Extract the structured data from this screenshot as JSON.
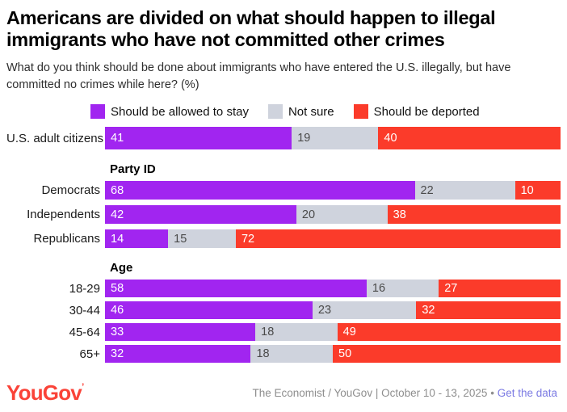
{
  "title": "Americans are divided on what should happen to illegal immigrants who have not committed other crimes",
  "subtitle": "What do you think should be done about immigrants who have entered the U.S. illegally, but have committed no crimes while here? (%)",
  "legend": [
    {
      "key": "stay",
      "label": "Should be allowed to stay",
      "color": "#A125F0"
    },
    {
      "key": "not-sure",
      "label": "Not sure",
      "color": "#CFD3DD"
    },
    {
      "key": "deported",
      "label": "Should be deported",
      "color": "#FB3B2A"
    }
  ],
  "chart_data": {
    "type": "bar",
    "orientation": "horizontal",
    "stacked": true,
    "unit": "%",
    "value_labels": true,
    "legend_position": "top",
    "series_names": [
      "Should be allowed to stay",
      "Not sure",
      "Should be deported"
    ],
    "series_colors": [
      "#A125F0",
      "#CFD3DD",
      "#FB3B2A"
    ],
    "xlim": [
      0,
      100
    ],
    "groups": [
      {
        "header": "",
        "rows": [
          {
            "label": "U.S. adult citizens",
            "values": [
              41,
              19,
              40
            ]
          }
        ]
      },
      {
        "header": "Party ID",
        "rows": [
          {
            "label": "Democrats",
            "values": [
              68,
              22,
              10
            ]
          },
          {
            "label": "Independents",
            "values": [
              42,
              20,
              38
            ]
          },
          {
            "label": "Republicans",
            "values": [
              14,
              15,
              72
            ]
          }
        ]
      },
      {
        "header": "Age",
        "rows": [
          {
            "label": "18-29",
            "values": [
              58,
              16,
              27
            ]
          },
          {
            "label": "30-44",
            "values": [
              46,
              23,
              32
            ]
          },
          {
            "label": "45-64",
            "values": [
              33,
              18,
              49
            ]
          },
          {
            "label": "65+",
            "values": [
              32,
              18,
              50
            ]
          }
        ]
      }
    ]
  },
  "footer": {
    "logo": "YouGov",
    "logo_mark": "’",
    "source": "The Economist / YouGov | October 10 - 13, 2025",
    "separator": "•",
    "link": "Get the data"
  }
}
